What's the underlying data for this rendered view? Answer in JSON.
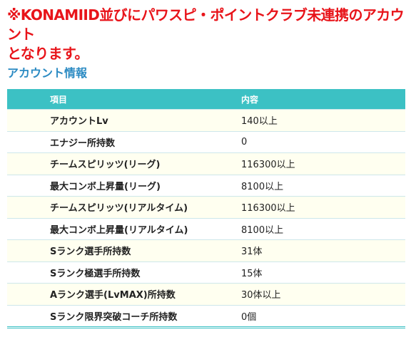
{
  "notice": {
    "line1": "※KONAMIID並びにパワスピ・ポイントクラブ未連携のアカウント",
    "line2": "となります。"
  },
  "section": {
    "title": "アカウント情報"
  },
  "table": {
    "header": {
      "item": "項目",
      "value": "内容"
    },
    "rows": [
      {
        "item": "アカウントLv",
        "value": "140以上"
      },
      {
        "item": "エナジー所持数",
        "value": "0"
      },
      {
        "item": "チームスピリッツ(リーグ)",
        "value": "116300以上"
      },
      {
        "item": "最大コンボ上昇量(リーグ)",
        "value": "8100以上"
      },
      {
        "item": "チームスピリッツ(リアルタイム)",
        "value": "116300以上"
      },
      {
        "item": "最大コンボ上昇量(リアルタイム)",
        "value": "8100以上"
      },
      {
        "item": "Sランク選手所持数",
        "value": "31体"
      },
      {
        "item": "Sランク極選手所持数",
        "value": "15体"
      },
      {
        "item": "Aランク選手(LvMAX)所持数",
        "value": "30体以上"
      },
      {
        "item": "Sランク限界突破コーチ所持数",
        "value": "0個"
      }
    ]
  },
  "colors": {
    "notice": "#e8141a",
    "title": "#2c8bc3",
    "header_bg": "#3cc1c4",
    "odd_row_bg": "#fffff0"
  }
}
